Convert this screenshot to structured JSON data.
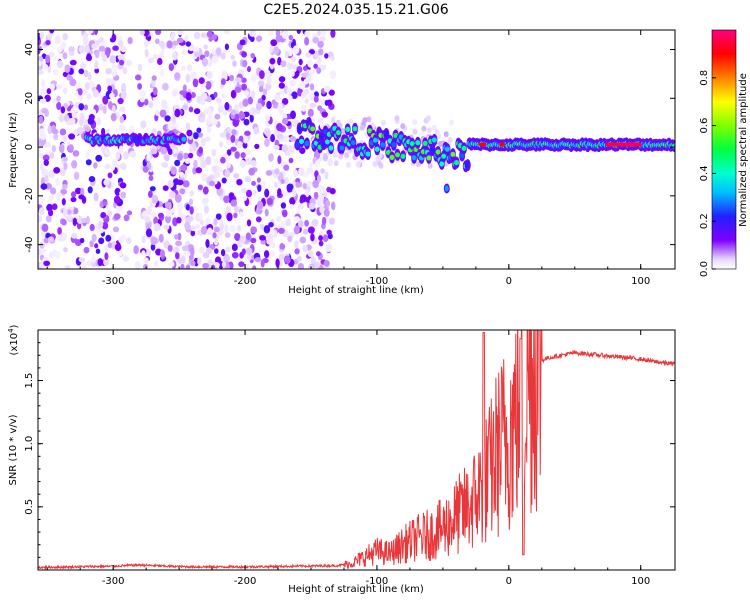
{
  "title": "C2E5.2024.035.15.21.G06",
  "chart_data": [
    {
      "type": "heatmap",
      "xlabel": "Height of straight line (km)",
      "ylabel": "Frequency (Hz)",
      "xlim": [
        -357,
        126
      ],
      "ylim": [
        -50,
        48
      ],
      "xticks": [
        -300,
        -200,
        -100,
        0,
        100
      ],
      "xtick_labels": [
        "-300",
        "-200",
        "-100",
        "0",
        "100"
      ],
      "yticks": [
        -40,
        -20,
        0,
        20,
        40
      ],
      "ytick_labels": [
        "-40",
        "-20",
        "0",
        "20",
        "40"
      ],
      "colorbar": {
        "label": "Normalized spectral amplitude",
        "range": [
          0,
          1
        ],
        "ticks": [
          0,
          0.2,
          0.4,
          0.6,
          0.8
        ],
        "tick_labels": [
          "0.0",
          "0.2",
          "0.4",
          "0.6",
          "0.8"
        ],
        "colormap": "rainbow (white-violet-blue-cyan-green-yellow-red-magenta)"
      },
      "features": [
        {
          "name": "broadband noise",
          "x_range": [
            -357,
            -133
          ],
          "freq_range": [
            -50,
            48
          ],
          "amplitude": 0.1
        },
        {
          "name": "early signal band",
          "x_range": [
            -320,
            -245
          ],
          "freq": 3,
          "amplitude": 0.35
        },
        {
          "name": "main signal band",
          "x_range": [
            -160,
            126
          ],
          "freq": 1,
          "amplitude": 0.55
        },
        {
          "name": "strong band peak",
          "x_range": [
            75,
            100
          ],
          "freq": 1,
          "amplitude": 0.95
        },
        {
          "name": "side lobe",
          "x": -47,
          "freq": -17,
          "amplitude": 0.3
        }
      ]
    },
    {
      "type": "line",
      "xlabel": "Height of straight line (km)",
      "ylabel": "SNR (10 * v/v)",
      "multiplier": "(x10",
      "multiplier_exp": "4",
      "multiplier_close": ")",
      "xlim": [
        -357,
        126
      ],
      "ylim": [
        0,
        1.9
      ],
      "xticks": [
        -300,
        -200,
        -100,
        0,
        100
      ],
      "xtick_labels": [
        "-300",
        "-200",
        "-100",
        "0",
        "100"
      ],
      "yticks": [
        0.5,
        1.0,
        1.5
      ],
      "ytick_labels": [
        "0.5",
        "1.0",
        "1.5"
      ],
      "series": [
        {
          "name": "SNR",
          "color": "#e8373a",
          "x": [
            -357,
            -330,
            -300,
            -280,
            -260,
            -240,
            -200,
            -160,
            -130,
            -120,
            -110,
            -100,
            -90,
            -80,
            -70,
            -60,
            -50,
            -40,
            -30,
            -20,
            -18,
            -15,
            -10,
            -5,
            0,
            5,
            10,
            15,
            20,
            25,
            30,
            40,
            50,
            60,
            80,
            100,
            110,
            126
          ],
          "values": [
            0.02,
            0.025,
            0.03,
            0.04,
            0.03,
            0.025,
            0.025,
            0.03,
            0.035,
            0.05,
            0.1,
            0.15,
            0.13,
            0.2,
            0.25,
            0.28,
            0.33,
            0.42,
            0.5,
            0.65,
            0.7,
            0.75,
            0.9,
            1.0,
            1.08,
            1.2,
            1.4,
            1.55,
            1.62,
            1.66,
            1.68,
            1.7,
            1.72,
            1.71,
            1.69,
            1.67,
            1.65,
            1.63
          ]
        }
      ],
      "annotations": [
        {
          "name": "spike",
          "x": -19,
          "value": 1.88
        },
        {
          "name": "spike",
          "x": 9,
          "value": 1.83
        },
        {
          "name": "dip",
          "x": 11,
          "value": 0.12
        }
      ]
    }
  ]
}
